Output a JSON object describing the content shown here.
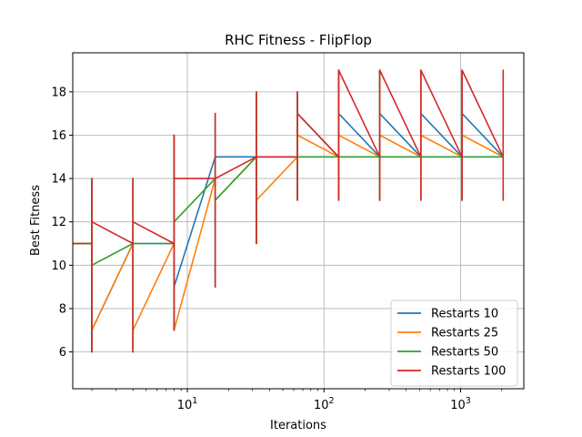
{
  "chart_data": {
    "type": "line",
    "title": "RHC Fitness - FlipFlop",
    "xlabel": "Iterations",
    "ylabel": "Best Fitness",
    "xscale": "log",
    "xlim": [
      1.45,
      2900
    ],
    "ylim": [
      4.3,
      19.8
    ],
    "grid": true,
    "legend_position": "lower-right",
    "x_ticks": [
      {
        "value": 10,
        "base": "10",
        "exp": "1"
      },
      {
        "value": 100,
        "base": "10",
        "exp": "2"
      },
      {
        "value": 1000,
        "base": "10",
        "exp": "3"
      }
    ],
    "y_ticks": [
      6,
      8,
      10,
      12,
      14,
      16,
      18
    ],
    "series": [
      {
        "name": "Restarts 10",
        "color": "#1f77b4",
        "points": [
          [
            1,
            11
          ],
          [
            2,
            11
          ],
          [
            2,
            7
          ],
          [
            2,
            14
          ],
          [
            2,
            6
          ],
          [
            2,
            7
          ],
          [
            4,
            11
          ],
          [
            4,
            7
          ],
          [
            4,
            14
          ],
          [
            4,
            6
          ],
          [
            4,
            11
          ],
          [
            8,
            11
          ],
          [
            8,
            9
          ],
          [
            8,
            16
          ],
          [
            8,
            7
          ],
          [
            8,
            9
          ],
          [
            16,
            15
          ],
          [
            16,
            10
          ],
          [
            16,
            17
          ],
          [
            16,
            9
          ],
          [
            16,
            15
          ],
          [
            32,
            15
          ],
          [
            32,
            15
          ],
          [
            32,
            18
          ],
          [
            32,
            11
          ],
          [
            32,
            15
          ],
          [
            64,
            15
          ],
          [
            64,
            17
          ],
          [
            64,
            18
          ],
          [
            64,
            13
          ],
          [
            64,
            17
          ],
          [
            128,
            15
          ],
          [
            128,
            17
          ],
          [
            128,
            19
          ],
          [
            128,
            13
          ],
          [
            128,
            17
          ],
          [
            256,
            15
          ],
          [
            256,
            17
          ],
          [
            256,
            19
          ],
          [
            256,
            13
          ],
          [
            256,
            17
          ],
          [
            512,
            15
          ],
          [
            512,
            17
          ],
          [
            512,
            19
          ],
          [
            512,
            13
          ],
          [
            512,
            17
          ],
          [
            1024,
            15
          ],
          [
            1024,
            17
          ],
          [
            1024,
            19
          ],
          [
            1024,
            13
          ],
          [
            1024,
            17
          ],
          [
            2048,
            15
          ]
        ]
      },
      {
        "name": "Restarts 25",
        "color": "#ff7f0e",
        "points": [
          [
            1,
            11
          ],
          [
            2,
            11
          ],
          [
            2,
            7
          ],
          [
            2,
            14
          ],
          [
            2,
            6
          ],
          [
            2,
            7
          ],
          [
            4,
            11
          ],
          [
            4,
            7
          ],
          [
            4,
            14
          ],
          [
            4,
            6
          ],
          [
            4,
            7
          ],
          [
            8,
            11
          ],
          [
            8,
            7
          ],
          [
            8,
            16
          ],
          [
            8,
            7
          ],
          [
            8,
            7
          ],
          [
            16,
            14
          ],
          [
            16,
            13
          ],
          [
            16,
            17
          ],
          [
            16,
            9
          ],
          [
            16,
            13
          ],
          [
            32,
            15
          ],
          [
            32,
            13
          ],
          [
            32,
            18
          ],
          [
            32,
            11
          ],
          [
            32,
            13
          ],
          [
            64,
            15
          ],
          [
            64,
            16
          ],
          [
            64,
            18
          ],
          [
            64,
            13
          ],
          [
            64,
            16
          ],
          [
            128,
            15
          ],
          [
            128,
            16
          ],
          [
            128,
            19
          ],
          [
            128,
            13
          ],
          [
            128,
            16
          ],
          [
            256,
            15
          ],
          [
            256,
            16
          ],
          [
            256,
            19
          ],
          [
            256,
            13
          ],
          [
            256,
            16
          ],
          [
            512,
            15
          ],
          [
            512,
            16
          ],
          [
            512,
            19
          ],
          [
            512,
            13
          ],
          [
            512,
            16
          ],
          [
            1024,
            15
          ],
          [
            1024,
            16
          ],
          [
            1024,
            19
          ],
          [
            1024,
            13
          ],
          [
            1024,
            16
          ],
          [
            2048,
            15
          ]
        ]
      },
      {
        "name": "Restarts 50",
        "color": "#2ca02c",
        "points": [
          [
            1,
            11
          ],
          [
            2,
            11
          ],
          [
            2,
            10
          ],
          [
            2,
            14
          ],
          [
            2,
            6
          ],
          [
            2,
            10
          ],
          [
            4,
            11
          ],
          [
            4,
            11
          ],
          [
            4,
            14
          ],
          [
            4,
            6
          ],
          [
            4,
            11
          ],
          [
            8,
            11
          ],
          [
            8,
            12
          ],
          [
            8,
            16
          ],
          [
            8,
            7
          ],
          [
            8,
            12
          ],
          [
            16,
            14
          ],
          [
            16,
            13
          ],
          [
            16,
            17
          ],
          [
            16,
            9
          ],
          [
            16,
            13
          ],
          [
            32,
            15
          ],
          [
            32,
            15
          ],
          [
            32,
            18
          ],
          [
            32,
            11
          ],
          [
            32,
            15
          ],
          [
            64,
            15
          ],
          [
            64,
            15
          ],
          [
            64,
            18
          ],
          [
            64,
            13
          ],
          [
            64,
            15
          ],
          [
            128,
            15
          ],
          [
            128,
            15
          ],
          [
            128,
            19
          ],
          [
            128,
            13
          ],
          [
            128,
            15
          ],
          [
            256,
            15
          ],
          [
            256,
            15
          ],
          [
            256,
            19
          ],
          [
            256,
            13
          ],
          [
            256,
            15
          ],
          [
            512,
            15
          ],
          [
            512,
            15
          ],
          [
            512,
            19
          ],
          [
            512,
            13
          ],
          [
            512,
            15
          ],
          [
            1024,
            15
          ],
          [
            1024,
            15
          ],
          [
            1024,
            19
          ],
          [
            1024,
            13
          ],
          [
            1024,
            15
          ],
          [
            2048,
            15
          ]
        ]
      },
      {
        "name": "Restarts 100",
        "color": "#d62728",
        "points": [
          [
            1,
            11
          ],
          [
            2,
            11
          ],
          [
            2,
            12
          ],
          [
            2,
            14
          ],
          [
            2,
            6
          ],
          [
            2,
            12
          ],
          [
            4,
            11
          ],
          [
            4,
            12
          ],
          [
            4,
            14
          ],
          [
            4,
            6
          ],
          [
            4,
            12
          ],
          [
            8,
            11
          ],
          [
            8,
            14
          ],
          [
            8,
            16
          ],
          [
            8,
            7
          ],
          [
            8,
            14
          ],
          [
            16,
            14
          ],
          [
            16,
            14
          ],
          [
            16,
            17
          ],
          [
            16,
            9
          ],
          [
            16,
            14
          ],
          [
            32,
            15
          ],
          [
            32,
            15
          ],
          [
            32,
            18
          ],
          [
            32,
            11
          ],
          [
            32,
            15
          ],
          [
            64,
            15
          ],
          [
            64,
            17
          ],
          [
            64,
            18
          ],
          [
            64,
            13
          ],
          [
            64,
            17
          ],
          [
            128,
            15
          ],
          [
            128,
            19
          ],
          [
            128,
            19
          ],
          [
            128,
            13
          ],
          [
            128,
            19
          ],
          [
            256,
            15
          ],
          [
            256,
            19
          ],
          [
            256,
            19
          ],
          [
            256,
            13
          ],
          [
            256,
            19
          ],
          [
            512,
            15
          ],
          [
            512,
            19
          ],
          [
            512,
            19
          ],
          [
            512,
            13
          ],
          [
            512,
            19
          ],
          [
            1024,
            15
          ],
          [
            1024,
            19
          ],
          [
            1024,
            19
          ],
          [
            1024,
            13
          ],
          [
            1024,
            19
          ],
          [
            2048,
            15
          ],
          [
            2048,
            19
          ],
          [
            2048,
            13
          ],
          [
            2048,
            19
          ],
          [
            2048,
            15
          ]
        ]
      }
    ]
  }
}
